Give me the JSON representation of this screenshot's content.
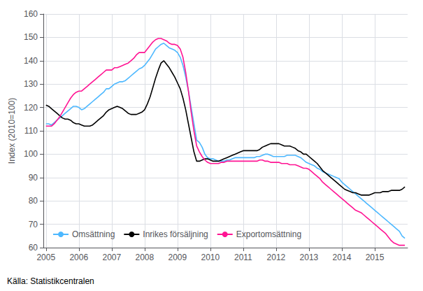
{
  "chart_data": {
    "type": "line",
    "ylabel": "Index (2010=100)",
    "annotations": [
      "Källa: Statistikcentralen"
    ],
    "xlim": [
      2004.92,
      2016.0
    ],
    "xticks": [
      2005,
      2006,
      2007,
      2008,
      2009,
      2010,
      2011,
      2012,
      2013,
      2014,
      2015
    ],
    "ylim": [
      60,
      160
    ],
    "yticks": [
      60,
      70,
      80,
      90,
      100,
      110,
      120,
      130,
      140,
      150,
      160
    ],
    "grid": true,
    "legend": "lower left",
    "x": [
      2005.0,
      2005.0833333333333,
      2005.1666666666667,
      2005.25,
      2005.3333333333333,
      2005.4166666666667,
      2005.5,
      2005.5833333333333,
      2005.6666666666667,
      2005.75,
      2005.8333333333333,
      2005.9166666666667,
      2006.0,
      2006.0833333333333,
      2006.1666666666667,
      2006.25,
      2006.3333333333333,
      2006.4166666666667,
      2006.5,
      2006.5833333333333,
      2006.6666666666667,
      2006.75,
      2006.8333333333333,
      2006.9166666666667,
      2007.0,
      2007.0833333333333,
      2007.1666666666667,
      2007.25,
      2007.3333333333333,
      2007.4166666666667,
      2007.5,
      2007.5833333333333,
      2007.6666666666667,
      2007.75,
      2007.8333333333333,
      2007.9166666666667,
      2008.0,
      2008.0833333333333,
      2008.1666666666667,
      2008.25,
      2008.3333333333333,
      2008.4166666666667,
      2008.5,
      2008.5833333333333,
      2008.6666666666667,
      2008.75,
      2008.8333333333333,
      2008.9166666666667,
      2009.0,
      2009.0833333333333,
      2009.1666666666667,
      2009.25,
      2009.3333333333333,
      2009.4166666666667,
      2009.5,
      2009.5833333333333,
      2009.6666666666667,
      2009.75,
      2009.8333333333333,
      2009.9166666666667,
      2010.0,
      2010.0833333333333,
      2010.1666666666667,
      2010.25,
      2010.3333333333333,
      2010.4166666666667,
      2010.5,
      2010.5833333333333,
      2010.6666666666667,
      2010.75,
      2010.8333333333333,
      2010.9166666666667,
      2011.0,
      2011.0833333333333,
      2011.1666666666667,
      2011.25,
      2011.3333333333333,
      2011.4166666666667,
      2011.5,
      2011.5833333333333,
      2011.6666666666667,
      2011.75,
      2011.8333333333333,
      2011.9166666666667,
      2012.0,
      2012.0833333333333,
      2012.1666666666667,
      2012.25,
      2012.3333333333333,
      2012.4166666666667,
      2012.5,
      2012.5833333333333,
      2012.6666666666667,
      2012.75,
      2012.8333333333333,
      2012.9166666666667,
      2013.0,
      2013.0833333333333,
      2013.1666666666667,
      2013.25,
      2013.3333333333333,
      2013.4166666666667,
      2013.5,
      2013.5833333333333,
      2013.6666666666667,
      2013.75,
      2013.8333333333333,
      2013.9166666666667,
      2014.0,
      2014.0833333333333,
      2014.1666666666667,
      2014.25,
      2014.3333333333333,
      2014.4166666666667,
      2014.5,
      2014.5833333333333,
      2014.6666666666667,
      2014.75,
      2014.8333333333333,
      2014.9166666666667,
      2015.0,
      2015.0833333333333,
      2015.1666666666667,
      2015.25,
      2015.3333333333333,
      2015.4166666666667,
      2015.5,
      2015.5833333333333,
      2015.6666666666667,
      2015.75,
      2015.8333333333333,
      2015.9166666666667
    ],
    "series": [
      {
        "name": "Omsättning",
        "color": "#4DB8FF",
        "values": [
          113.0,
          113.0,
          112.5,
          113.5,
          114.5,
          115.5,
          116.5,
          117.5,
          118.5,
          119.5,
          120.5,
          120.5,
          120.0,
          119.0,
          119.5,
          120.5,
          121.5,
          122.5,
          123.5,
          124.5,
          125.5,
          126.5,
          128.0,
          128.0,
          129.0,
          130.0,
          130.5,
          131.0,
          131.0,
          131.5,
          132.5,
          133.5,
          134.5,
          135.5,
          136.5,
          137.0,
          138.0,
          139.5,
          141.0,
          143.0,
          145.0,
          146.0,
          147.0,
          147.5,
          146.5,
          145.5,
          145.0,
          144.5,
          143.5,
          141.5,
          138.0,
          133.0,
          127.0,
          120.0,
          113.0,
          106.0,
          105.0,
          103.0,
          100.0,
          98.5,
          98.0,
          98.0,
          97.5,
          97.0,
          97.0,
          97.0,
          97.5,
          97.5,
          98.0,
          98.5,
          98.5,
          98.5,
          98.5,
          98.5,
          98.5,
          98.5,
          98.5,
          99.0,
          99.0,
          99.5,
          100.0,
          100.0,
          99.5,
          99.0,
          99.0,
          99.0,
          99.0,
          99.0,
          99.5,
          99.5,
          99.5,
          99.5,
          99.0,
          98.5,
          97.5,
          96.5,
          96.0,
          95.5,
          95.0,
          94.0,
          93.5,
          92.5,
          92.0,
          91.5,
          91.0,
          90.5,
          90.0,
          89.5,
          88.0,
          87.0,
          86.0,
          85.0,
          84.0,
          83.0,
          82.0,
          81.0,
          80.0,
          79.0,
          78.0,
          77.0,
          76.0,
          75.0,
          74.0,
          73.0,
          72.0,
          71.0,
          70.0,
          69.0,
          68.0,
          67.0,
          65.0,
          64.0
        ]
      },
      {
        "name": "Inrikes försäljning",
        "color": "#000000",
        "values": [
          121.0,
          120.5,
          119.5,
          118.5,
          117.5,
          116.5,
          115.5,
          115.0,
          115.0,
          114.5,
          113.5,
          113.0,
          113.0,
          112.5,
          112.0,
          112.0,
          112.0,
          112.5,
          113.5,
          114.5,
          115.5,
          116.5,
          118.0,
          119.0,
          119.5,
          120.0,
          120.5,
          120.0,
          119.5,
          118.5,
          117.5,
          117.0,
          117.0,
          117.0,
          117.5,
          118.0,
          119.0,
          121.5,
          124.5,
          128.5,
          132.5,
          136.0,
          139.0,
          140.0,
          138.5,
          137.0,
          135.0,
          133.0,
          130.5,
          128.0,
          124.0,
          119.0,
          113.0,
          107.0,
          101.0,
          97.0,
          97.0,
          97.5,
          98.0,
          98.0,
          97.5,
          97.0,
          97.0,
          97.0,
          97.5,
          98.0,
          98.5,
          99.0,
          99.5,
          100.0,
          100.5,
          101.0,
          101.5,
          101.5,
          101.5,
          101.5,
          101.5,
          101.5,
          102.0,
          103.0,
          103.5,
          104.0,
          104.5,
          104.5,
          104.5,
          104.5,
          104.0,
          103.5,
          103.5,
          103.5,
          103.0,
          102.5,
          101.5,
          101.0,
          100.0,
          100.0,
          99.0,
          98.0,
          97.0,
          96.0,
          94.5,
          93.0,
          92.0,
          91.0,
          90.0,
          89.0,
          88.0,
          87.0,
          86.0,
          85.0,
          84.5,
          84.0,
          83.5,
          83.5,
          83.0,
          82.5,
          82.5,
          82.5,
          82.5,
          83.0,
          83.5,
          83.5,
          83.5,
          84.0,
          84.0,
          84.0,
          84.5,
          84.5,
          84.5,
          84.5,
          85.0,
          86.0
        ]
      },
      {
        "name": "Exportomsättning",
        "color": "#FF1493",
        "values": [
          112.0,
          112.0,
          112.0,
          113.0,
          114.5,
          116.0,
          118.0,
          120.0,
          122.0,
          124.0,
          125.5,
          126.5,
          127.0,
          127.0,
          128.0,
          129.0,
          130.0,
          131.0,
          132.0,
          133.0,
          134.0,
          135.0,
          136.0,
          136.0,
          136.0,
          137.0,
          137.0,
          137.5,
          138.0,
          138.5,
          139.0,
          140.0,
          141.0,
          142.5,
          143.5,
          143.5,
          143.5,
          145.0,
          146.5,
          148.0,
          149.0,
          149.5,
          149.5,
          149.0,
          148.5,
          147.5,
          147.0,
          147.0,
          146.5,
          145.0,
          141.5,
          135.0,
          127.0,
          118.0,
          110.0,
          103.5,
          101.0,
          99.0,
          97.5,
          96.5,
          96.0,
          96.0,
          96.0,
          96.0,
          96.5,
          96.5,
          97.0,
          97.0,
          97.0,
          97.0,
          97.0,
          97.0,
          97.0,
          97.0,
          97.0,
          97.0,
          97.0,
          97.0,
          97.5,
          97.5,
          97.0,
          97.0,
          96.5,
          96.5,
          96.5,
          96.5,
          96.0,
          96.0,
          96.0,
          95.5,
          95.5,
          95.5,
          95.0,
          94.5,
          94.0,
          94.0,
          93.5,
          92.5,
          91.5,
          90.5,
          89.5,
          88.0,
          87.0,
          86.0,
          85.0,
          84.0,
          83.0,
          82.0,
          81.0,
          80.0,
          79.0,
          78.0,
          77.0,
          76.0,
          75.5,
          75.0,
          74.0,
          73.0,
          72.0,
          71.0,
          70.0,
          69.0,
          68.0,
          67.0,
          66.0,
          64.5,
          63.0,
          62.0,
          61.5,
          61.0,
          61.0,
          61.0
        ]
      }
    ]
  }
}
